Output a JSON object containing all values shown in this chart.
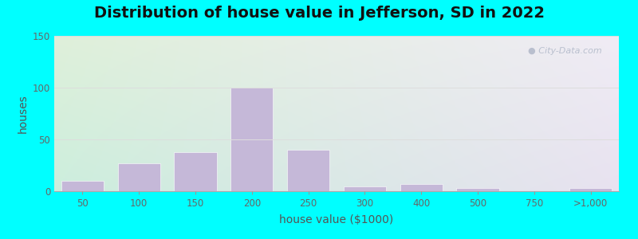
{
  "title": "Distribution of house value in Jefferson, SD in 2022",
  "xlabel": "house value ($1000)",
  "ylabel": "houses",
  "bar_color": "#c5b8d8",
  "bar_edgecolor": "#ffffff",
  "bar_heights": [
    10,
    27,
    38,
    100,
    40,
    5,
    7,
    3,
    0,
    3
  ],
  "xtick_labels": [
    "50",
    "100",
    "150",
    "200",
    "250",
    "300",
    "400",
    "500",
    "750",
    ">1,000"
  ],
  "ylim": [
    0,
    150
  ],
  "yticks": [
    0,
    50,
    100,
    150
  ],
  "bg_outer": "#00ffff",
  "bg_topleft": "#dff0da",
  "bg_topright": "#f0ecf5",
  "bg_botleft": "#cceedd",
  "bg_botright": "#e8e2f0",
  "watermark": "City-Data.com",
  "title_fontsize": 14,
  "axis_label_fontsize": 10,
  "tick_fontsize": 8.5,
  "grid_color": "#dddddd",
  "tick_color": "#666666",
  "label_color": "#555555",
  "title_color": "#111111"
}
